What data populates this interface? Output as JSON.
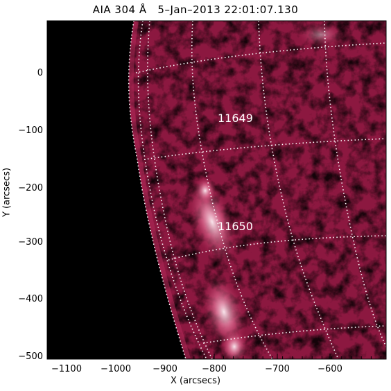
{
  "title": "AIA 304 Å   5–Jan–2013 22:01:07.130",
  "xlabel": "X (arcsecs)",
  "ylabel": "Y (arcsecs)",
  "x_ticks": [
    "−1100",
    "−1000",
    "−900",
    "−800",
    "−700",
    "−600"
  ],
  "y_ticks": [
    "0",
    "−100",
    "−200",
    "−300",
    "−400",
    "−500"
  ],
  "annotations": [
    {
      "text": "11649"
    },
    {
      "text": "11650"
    }
  ],
  "colors": {
    "sun_dark": "#3a0010",
    "sun_mid": "#8a1838",
    "sun_bright": "#ffd6e4",
    "grid": "#ffffff"
  }
}
